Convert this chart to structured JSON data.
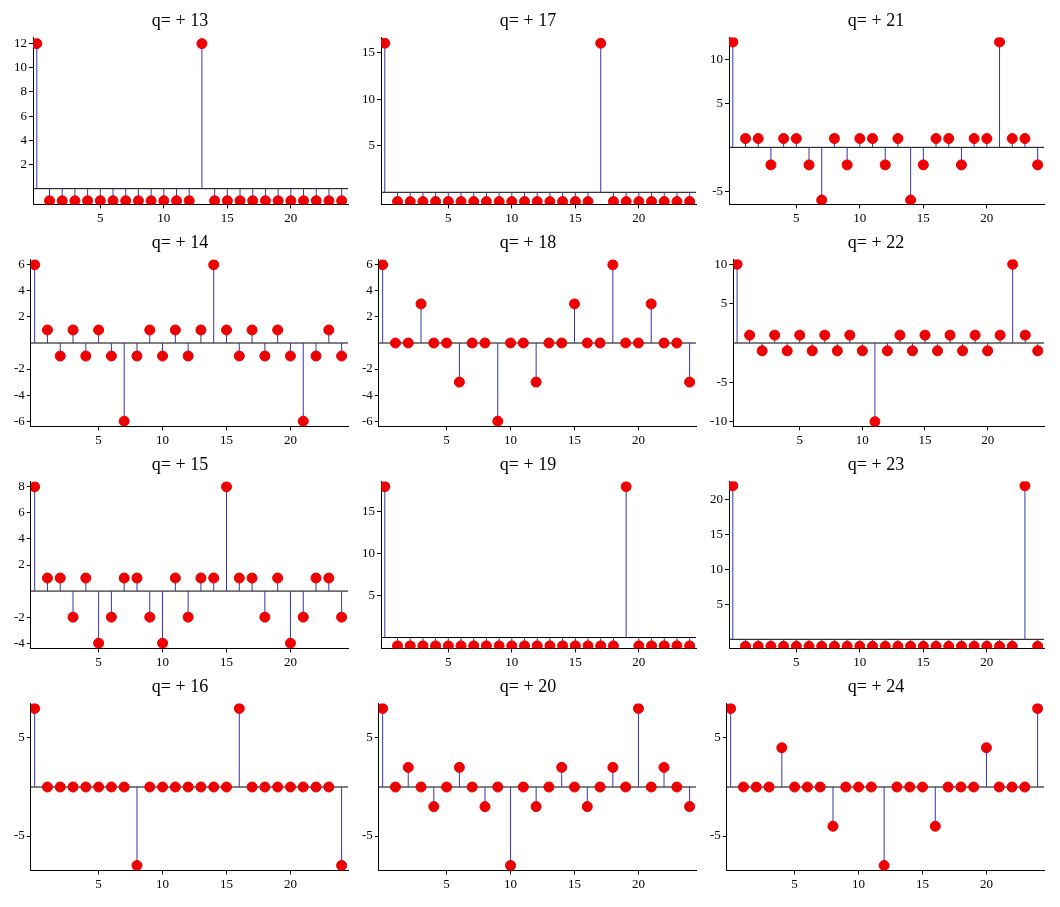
{
  "chart_data": [
    {
      "type": "lollipop",
      "title": "q= + 13",
      "x": [
        0,
        1,
        2,
        3,
        4,
        5,
        6,
        7,
        8,
        9,
        10,
        11,
        12,
        13,
        14,
        15,
        16,
        17,
        18,
        19,
        20,
        21,
        22,
        23,
        24
      ],
      "xlim": [
        -0.3,
        24.5
      ],
      "xticks": [
        5,
        10,
        15,
        20
      ],
      "ylim": [
        -1.3,
        12.5
      ],
      "yticks": [
        2,
        4,
        6,
        8,
        10,
        12
      ],
      "marker": "circle",
      "series": [
        {
          "color": "#ee0000",
          "values": [
            12,
            -1,
            -1,
            -1,
            -1,
            -1,
            -1,
            -1,
            -1,
            -1,
            -1,
            -1,
            -1,
            12,
            -1,
            -1,
            -1,
            -1,
            -1,
            -1,
            -1,
            -1,
            -1,
            -1,
            -1
          ]
        }
      ]
    },
    {
      "type": "lollipop",
      "title": "q= + 17",
      "x": [
        0,
        1,
        2,
        3,
        4,
        5,
        6,
        7,
        8,
        9,
        10,
        11,
        12,
        13,
        14,
        15,
        16,
        17,
        18,
        19,
        20,
        21,
        22,
        23,
        24
      ],
      "xlim": [
        -0.3,
        24.5
      ],
      "xticks": [
        5,
        10,
        15,
        20
      ],
      "ylim": [
        -1.3,
        16.6
      ],
      "yticks": [
        5,
        10,
        15
      ],
      "marker": "circle",
      "series": [
        {
          "color": "#ee0000",
          "values": [
            16,
            -1,
            -1,
            -1,
            -1,
            -1,
            -1,
            -1,
            -1,
            -1,
            -1,
            -1,
            -1,
            -1,
            -1,
            -1,
            -1,
            16,
            -1,
            -1,
            -1,
            -1,
            -1,
            -1,
            -1
          ]
        }
      ]
    },
    {
      "type": "lollipop",
      "title": "q= + 21",
      "x": [
        0,
        1,
        2,
        3,
        4,
        5,
        6,
        7,
        8,
        9,
        10,
        11,
        12,
        13,
        14,
        15,
        16,
        17,
        18,
        19,
        20,
        21,
        22,
        23,
        24
      ],
      "xlim": [
        -0.3,
        24.5
      ],
      "xticks": [
        5,
        10,
        15,
        20
      ],
      "ylim": [
        -6.5,
        12.5
      ],
      "yticks": [
        -5,
        5,
        10
      ],
      "marker": "circle",
      "series": [
        {
          "color": "#ee0000",
          "values": [
            12,
            1,
            1,
            -2,
            1,
            1,
            -2,
            -6,
            1,
            -2,
            1,
            1,
            -2,
            1,
            -6,
            -2,
            1,
            1,
            -2,
            1,
            1,
            12,
            1,
            1,
            -2
          ]
        }
      ]
    },
    {
      "type": "lollipop",
      "title": "q= + 14",
      "x": [
        0,
        1,
        2,
        3,
        4,
        5,
        6,
        7,
        8,
        9,
        10,
        11,
        12,
        13,
        14,
        15,
        16,
        17,
        18,
        19,
        20,
        21,
        22,
        23,
        24
      ],
      "xlim": [
        -0.3,
        24.5
      ],
      "xticks": [
        5,
        10,
        15,
        20
      ],
      "ylim": [
        -6.4,
        6.4
      ],
      "yticks": [
        -6,
        -4,
        -2,
        2,
        4,
        6
      ],
      "marker": "circle",
      "series": [
        {
          "color": "#ee0000",
          "values": [
            6,
            1,
            -1,
            1,
            -1,
            1,
            -1,
            -6,
            -1,
            1,
            -1,
            1,
            -1,
            1,
            6,
            1,
            -1,
            1,
            -1,
            1,
            -1,
            -6,
            -1,
            1,
            -1
          ]
        }
      ]
    },
    {
      "type": "lollipop",
      "title": "q= + 18",
      "x": [
        0,
        1,
        2,
        3,
        4,
        5,
        6,
        7,
        8,
        9,
        10,
        11,
        12,
        13,
        14,
        15,
        16,
        17,
        18,
        19,
        20,
        21,
        22,
        23,
        24
      ],
      "xlim": [
        -0.3,
        24.5
      ],
      "xticks": [
        5,
        10,
        15,
        20
      ],
      "ylim": [
        -6.4,
        6.4
      ],
      "yticks": [
        -6,
        -4,
        -2,
        2,
        4,
        6
      ],
      "marker": "circle",
      "series": [
        {
          "color": "#ee0000",
          "values": [
            6,
            0,
            0,
            3,
            0,
            0,
            -3,
            0,
            0,
            -6,
            0,
            0,
            -3,
            0,
            0,
            3,
            0,
            0,
            6,
            0,
            0,
            3,
            0,
            0,
            -3
          ]
        }
      ]
    },
    {
      "type": "lollipop",
      "title": "q= + 22",
      "x": [
        0,
        1,
        2,
        3,
        4,
        5,
        6,
        7,
        8,
        9,
        10,
        11,
        12,
        13,
        14,
        15,
        16,
        17,
        18,
        19,
        20,
        21,
        22,
        23,
        24
      ],
      "xlim": [
        -0.3,
        24.5
      ],
      "xticks": [
        5,
        10,
        15,
        20
      ],
      "ylim": [
        -10.6,
        10.6
      ],
      "yticks": [
        -10,
        -5,
        5,
        10
      ],
      "marker": "circle",
      "series": [
        {
          "color": "#ee0000",
          "values": [
            10,
            1,
            -1,
            1,
            -1,
            1,
            -1,
            1,
            -1,
            1,
            -1,
            -10,
            -1,
            1,
            -1,
            1,
            -1,
            1,
            -1,
            1,
            -1,
            1,
            10,
            1,
            -1
          ]
        }
      ]
    },
    {
      "type": "lollipop",
      "title": "q= + 15",
      "x": [
        0,
        1,
        2,
        3,
        4,
        5,
        6,
        7,
        8,
        9,
        10,
        11,
        12,
        13,
        14,
        15,
        16,
        17,
        18,
        19,
        20,
        21,
        22,
        23,
        24
      ],
      "xlim": [
        -0.3,
        24.5
      ],
      "xticks": [
        5,
        10,
        15,
        20
      ],
      "ylim": [
        -4.4,
        8.4
      ],
      "yticks": [
        -4,
        -2,
        2,
        4,
        6,
        8
      ],
      "marker": "circle",
      "series": [
        {
          "color": "#ee0000",
          "values": [
            8,
            1,
            1,
            -2,
            1,
            -4,
            -2,
            1,
            1,
            -2,
            -4,
            1,
            -2,
            1,
            1,
            8,
            1,
            1,
            -2,
            1,
            -4,
            -2,
            1,
            1,
            -2
          ]
        }
      ]
    },
    {
      "type": "lollipop",
      "title": "q= + 19",
      "x": [
        0,
        1,
        2,
        3,
        4,
        5,
        6,
        7,
        8,
        9,
        10,
        11,
        12,
        13,
        14,
        15,
        16,
        17,
        18,
        19,
        20,
        21,
        22,
        23,
        24
      ],
      "xlim": [
        -0.3,
        24.5
      ],
      "xticks": [
        5,
        10,
        15,
        20
      ],
      "ylim": [
        -1.3,
        18.6
      ],
      "yticks": [
        5,
        10,
        15
      ],
      "marker": "circle",
      "series": [
        {
          "color": "#ee0000",
          "values": [
            18,
            -1,
            -1,
            -1,
            -1,
            -1,
            -1,
            -1,
            -1,
            -1,
            -1,
            -1,
            -1,
            -1,
            -1,
            -1,
            -1,
            -1,
            -1,
            18,
            -1,
            -1,
            -1,
            -1,
            -1
          ]
        }
      ]
    },
    {
      "type": "lollipop",
      "title": "q= + 23",
      "x": [
        0,
        1,
        2,
        3,
        4,
        5,
        6,
        7,
        8,
        9,
        10,
        11,
        12,
        13,
        14,
        15,
        16,
        17,
        18,
        19,
        20,
        21,
        22,
        23,
        24
      ],
      "xlim": [
        -0.3,
        24.5
      ],
      "xticks": [
        5,
        10,
        15,
        20
      ],
      "ylim": [
        -1.3,
        22.6
      ],
      "yticks": [
        5,
        10,
        15,
        20
      ],
      "marker": "circle",
      "series": [
        {
          "color": "#ee0000",
          "values": [
            22,
            -1,
            -1,
            -1,
            -1,
            -1,
            -1,
            -1,
            -1,
            -1,
            -1,
            -1,
            -1,
            -1,
            -1,
            -1,
            -1,
            -1,
            -1,
            -1,
            -1,
            -1,
            -1,
            22,
            -1
          ]
        }
      ]
    },
    {
      "type": "lollipop",
      "title": "q= + 16",
      "x": [
        0,
        1,
        2,
        3,
        4,
        5,
        6,
        7,
        8,
        9,
        10,
        11,
        12,
        13,
        14,
        15,
        16,
        17,
        18,
        19,
        20,
        21,
        22,
        23,
        24
      ],
      "xlim": [
        -0.3,
        24.5
      ],
      "xticks": [
        5,
        10,
        15,
        20
      ],
      "ylim": [
        -8.5,
        8.5
      ],
      "yticks": [
        -5,
        5
      ],
      "marker": "circle",
      "series": [
        {
          "color": "#ee0000",
          "values": [
            8,
            0,
            0,
            0,
            0,
            0,
            0,
            0,
            -8,
            0,
            0,
            0,
            0,
            0,
            0,
            0,
            8,
            0,
            0,
            0,
            0,
            0,
            0,
            0,
            -8
          ]
        }
      ]
    },
    {
      "type": "lollipop",
      "title": "q= + 20",
      "x": [
        0,
        1,
        2,
        3,
        4,
        5,
        6,
        7,
        8,
        9,
        10,
        11,
        12,
        13,
        14,
        15,
        16,
        17,
        18,
        19,
        20,
        21,
        22,
        23,
        24
      ],
      "xlim": [
        -0.3,
        24.5
      ],
      "xticks": [
        5,
        10,
        15,
        20
      ],
      "ylim": [
        -8.5,
        8.5
      ],
      "yticks": [
        -5,
        5
      ],
      "marker": "circle",
      "series": [
        {
          "color": "#ee0000",
          "values": [
            8,
            0,
            2,
            0,
            -2,
            0,
            2,
            0,
            -2,
            0,
            -8,
            0,
            -2,
            0,
            2,
            0,
            -2,
            0,
            2,
            0,
            8,
            0,
            2,
            0,
            -2
          ]
        }
      ]
    },
    {
      "type": "lollipop",
      "title": "q= + 24",
      "x": [
        0,
        1,
        2,
        3,
        4,
        5,
        6,
        7,
        8,
        9,
        10,
        11,
        12,
        13,
        14,
        15,
        16,
        17,
        18,
        19,
        20,
        21,
        22,
        23,
        24
      ],
      "xlim": [
        -0.3,
        24.5
      ],
      "xticks": [
        5,
        10,
        15,
        20
      ],
      "ylim": [
        -8.5,
        8.5
      ],
      "yticks": [
        -5,
        5
      ],
      "marker": "circle",
      "series": [
        {
          "color": "#ee0000",
          "values": [
            8,
            0,
            0,
            0,
            4,
            0,
            0,
            0,
            -4,
            0,
            0,
            0,
            -8,
            0,
            0,
            0,
            -4,
            0,
            0,
            0,
            4,
            0,
            0,
            0,
            8
          ]
        }
      ]
    }
  ]
}
